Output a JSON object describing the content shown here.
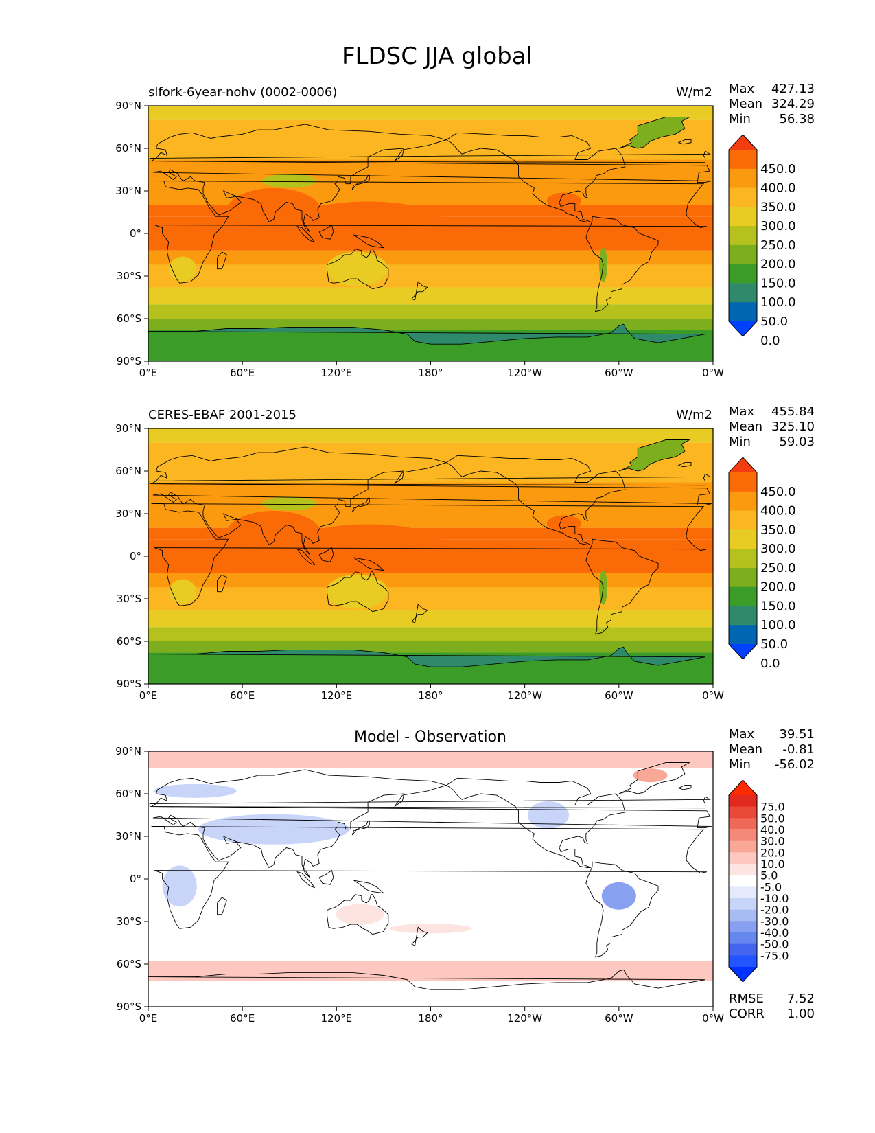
{
  "chart_data": {
    "type": "contour-map",
    "title": "FLDSC JJA global",
    "axes": {
      "x_ticks": [
        "0°E",
        "60°E",
        "120°E",
        "180°",
        "120°W",
        "60°W",
        "0°W"
      ],
      "y_ticks": [
        "90°N",
        "60°N",
        "30°N",
        "0°",
        "30°S",
        "60°S",
        "90°S"
      ]
    },
    "colors": {
      "abs_levels": [
        "#0040ff",
        "#0066b3",
        "#2e8a6b",
        "#3c9c28",
        "#7cae1e",
        "#b5c21e",
        "#e8cc24",
        "#fbb621",
        "#fb9a0e",
        "#fa6a06",
        "#f23d10"
      ],
      "diff_levels": [
        "#0033ff",
        "#2255ff",
        "#4466ee",
        "#6688ee",
        "#88a0f0",
        "#a8bcf4",
        "#c8d4f8",
        "#e4eafc",
        "#ffffff",
        "#fde4e0",
        "#fcc8c0",
        "#f9a898",
        "#f58878",
        "#f06858",
        "#ea4838",
        "#e22a20",
        "#ff2a00"
      ]
    },
    "panels": [
      {
        "title": "slfork-6year-nohv (0002-0006)",
        "units": "W/m2",
        "stats": {
          "max_label": "Max",
          "max": "427.13",
          "mean_label": "Mean",
          "mean": "324.29",
          "min_label": "Min",
          "min": "56.38"
        },
        "colorbar_levels": [
          "450.0",
          "400.0",
          "350.0",
          "300.0",
          "250.0",
          "200.0",
          "150.0",
          "100.0",
          "50.0",
          "0.0"
        ]
      },
      {
        "title": "CERES-EBAF 2001-2015",
        "units": "W/m2",
        "stats": {
          "max_label": "Max",
          "max": "455.84",
          "mean_label": "Mean",
          "mean": "325.10",
          "min_label": "Min",
          "min": "59.03"
        },
        "colorbar_levels": [
          "450.0",
          "400.0",
          "350.0",
          "300.0",
          "250.0",
          "200.0",
          "150.0",
          "100.0",
          "50.0",
          "0.0"
        ]
      },
      {
        "title": "Model - Observation",
        "units": "",
        "stats": {
          "max_label": "Max",
          "max": "39.51",
          "mean_label": "Mean",
          "mean": "-0.81",
          "min_label": "Min",
          "min": "-56.02"
        },
        "colorbar_levels": [
          "75.0",
          "50.0",
          "40.0",
          "30.0",
          "20.0",
          "10.0",
          "5.0",
          "-5.0",
          "-10.0",
          "-20.0",
          "-30.0",
          "-40.0",
          "-50.0",
          "-75.0"
        ],
        "extra_stats": {
          "rmse_label": "RMSE",
          "rmse": "7.52",
          "corr_label": "CORR",
          "corr": "1.00"
        }
      }
    ]
  }
}
